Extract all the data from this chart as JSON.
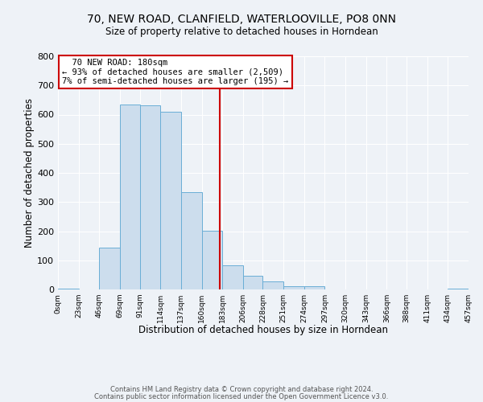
{
  "title_line1": "70, NEW ROAD, CLANFIELD, WATERLOOVILLE, PO8 0NN",
  "title_line2": "Size of property relative to detached houses in Horndean",
  "xlabel": "Distribution of detached houses by size in Horndean",
  "ylabel": "Number of detached properties",
  "bar_color": "#ccdded",
  "bar_edge_color": "#6aaed6",
  "background_color": "#eef2f7",
  "grid_color": "#ffffff",
  "vline_x": 180,
  "vline_color": "#cc0000",
  "bin_edges": [
    0,
    23,
    46,
    69,
    91,
    114,
    137,
    160,
    183,
    206,
    228,
    251,
    274,
    297,
    320,
    343,
    366,
    388,
    411,
    434,
    457
  ],
  "bin_heights": [
    3,
    0,
    143,
    635,
    632,
    609,
    333,
    201,
    84,
    47,
    27,
    12,
    12,
    0,
    0,
    0,
    0,
    0,
    0,
    3
  ],
  "tick_labels": [
    "0sqm",
    "23sqm",
    "46sqm",
    "69sqm",
    "91sqm",
    "114sqm",
    "137sqm",
    "160sqm",
    "183sqm",
    "206sqm",
    "228sqm",
    "251sqm",
    "274sqm",
    "297sqm",
    "320sqm",
    "343sqm",
    "366sqm",
    "388sqm",
    "411sqm",
    "434sqm",
    "457sqm"
  ],
  "ylim": [
    0,
    800
  ],
  "yticks": [
    0,
    100,
    200,
    300,
    400,
    500,
    600,
    700,
    800
  ],
  "annotation_title": "70 NEW ROAD: 180sqm",
  "annotation_line1": "← 93% of detached houses are smaller (2,509)",
  "annotation_line2": "7% of semi-detached houses are larger (195) →",
  "annotation_box_color": "white",
  "annotation_box_edge": "#cc0000",
  "footer_line1": "Contains HM Land Registry data © Crown copyright and database right 2024.",
  "footer_line2": "Contains public sector information licensed under the Open Government Licence v3.0."
}
